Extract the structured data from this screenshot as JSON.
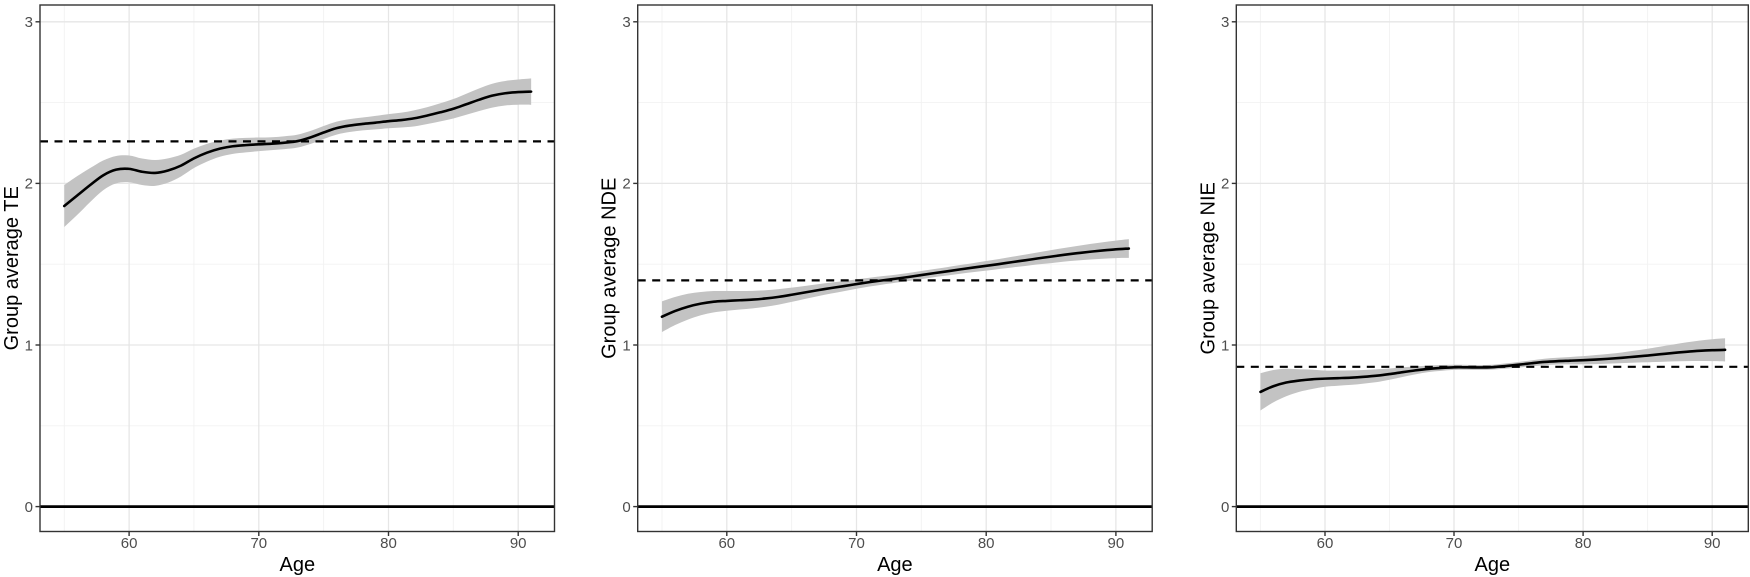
{
  "style": {
    "background": "#ffffff",
    "band_color": "#c3c3c3",
    "line_color": "#000000",
    "grid_major": "#e6e6e6",
    "grid_minor": "#f2f2f2",
    "panel_border": "#333333",
    "tick_color": "#333333",
    "tick_label_color": "#4d4d4d",
    "axis_title_color": "#000000"
  },
  "chart_data": [
    {
      "type": "line",
      "panel": "TE",
      "title": "",
      "xlabel": "Age",
      "ylabel": "Group average TE",
      "x_ticks": [
        60,
        70,
        80,
        90
      ],
      "x_minor_ticks": [
        55,
        65,
        75,
        85
      ],
      "y_ticks": [
        0,
        1,
        2,
        3
      ],
      "y_minor_ticks": [
        0.5,
        1.5,
        2.5
      ],
      "xlim": [
        53.13,
        92.8
      ],
      "ylim": [
        -0.154,
        3.104
      ],
      "grid": true,
      "legend": "none",
      "reference_lines": {
        "solid_y": 0,
        "dashed_y": 2.26
      },
      "series": {
        "name": "smoothed group average TE with 95% CI band",
        "x": [
          55,
          56,
          57,
          58,
          59,
          60,
          61,
          62,
          63,
          64,
          65,
          66,
          67,
          68,
          69,
          70,
          71,
          72,
          73,
          74,
          75,
          76,
          77,
          78,
          79,
          80,
          81,
          82,
          83,
          84,
          85,
          86,
          87,
          88,
          89,
          90,
          91
        ],
        "y": [
          1.86,
          1.925,
          1.99,
          2.05,
          2.085,
          2.09,
          2.072,
          2.065,
          2.08,
          2.11,
          2.155,
          2.19,
          2.215,
          2.23,
          2.237,
          2.242,
          2.246,
          2.252,
          2.262,
          2.285,
          2.315,
          2.342,
          2.358,
          2.368,
          2.376,
          2.385,
          2.392,
          2.403,
          2.42,
          2.44,
          2.462,
          2.49,
          2.518,
          2.543,
          2.558,
          2.565,
          2.568
        ],
        "ci_halfwidth": [
          0.13,
          0.12,
          0.105,
          0.092,
          0.085,
          0.083,
          0.082,
          0.08,
          0.075,
          0.067,
          0.06,
          0.055,
          0.05,
          0.047,
          0.045,
          0.042,
          0.04,
          0.04,
          0.04,
          0.04,
          0.04,
          0.04,
          0.04,
          0.04,
          0.042,
          0.044,
          0.046,
          0.05,
          0.052,
          0.056,
          0.06,
          0.065,
          0.07,
          0.074,
          0.076,
          0.078,
          0.082
        ]
      }
    },
    {
      "type": "line",
      "panel": "NDE",
      "title": "",
      "xlabel": "Age",
      "ylabel": "Group average NDE",
      "x_ticks": [
        60,
        70,
        80,
        90
      ],
      "x_minor_ticks": [
        55,
        65,
        75,
        85
      ],
      "y_ticks": [
        0,
        1,
        2,
        3
      ],
      "y_minor_ticks": [
        0.5,
        1.5,
        2.5
      ],
      "xlim": [
        53.13,
        92.8
      ],
      "ylim": [
        -0.154,
        3.104
      ],
      "grid": true,
      "legend": "none",
      "reference_lines": {
        "solid_y": 0,
        "dashed_y": 1.4
      },
      "series": {
        "name": "smoothed group average NDE with 95% CI band",
        "x": [
          55,
          56,
          57,
          58,
          59,
          60,
          61,
          62,
          63,
          64,
          65,
          66,
          67,
          68,
          69,
          70,
          71,
          72,
          73,
          74,
          75,
          76,
          77,
          78,
          79,
          80,
          81,
          82,
          83,
          84,
          85,
          86,
          87,
          88,
          89,
          90,
          91
        ],
        "y": [
          1.175,
          1.21,
          1.237,
          1.256,
          1.268,
          1.273,
          1.277,
          1.281,
          1.288,
          1.298,
          1.311,
          1.325,
          1.339,
          1.352,
          1.364,
          1.377,
          1.389,
          1.4,
          1.41,
          1.421,
          1.433,
          1.445,
          1.456,
          1.468,
          1.479,
          1.49,
          1.501,
          1.513,
          1.524,
          1.536,
          1.547,
          1.558,
          1.568,
          1.577,
          1.585,
          1.592,
          1.597
        ],
        "ci_halfwidth": [
          0.095,
          0.087,
          0.08,
          0.072,
          0.066,
          0.061,
          0.057,
          0.054,
          0.051,
          0.048,
          0.044,
          0.04,
          0.037,
          0.034,
          0.031,
          0.029,
          0.027,
          0.026,
          0.025,
          0.025,
          0.025,
          0.025,
          0.026,
          0.027,
          0.028,
          0.03,
          0.031,
          0.033,
          0.035,
          0.037,
          0.04,
          0.042,
          0.045,
          0.048,
          0.051,
          0.054,
          0.058
        ]
      }
    },
    {
      "type": "line",
      "panel": "NIE",
      "title": "",
      "xlabel": "Age",
      "ylabel": "Group average NIE",
      "x_ticks": [
        60,
        70,
        80,
        90
      ],
      "x_minor_ticks": [
        55,
        65,
        75,
        85
      ],
      "y_ticks": [
        0,
        1,
        2,
        3
      ],
      "y_minor_ticks": [
        0.5,
        1.5,
        2.5
      ],
      "xlim": [
        53.13,
        92.8
      ],
      "ylim": [
        -0.154,
        3.104
      ],
      "grid": true,
      "legend": "none",
      "reference_lines": {
        "solid_y": 0,
        "dashed_y": 0.865
      },
      "series": {
        "name": "smoothed group average NIE with 95% CI band",
        "x": [
          55,
          56,
          57,
          58,
          59,
          60,
          61,
          62,
          63,
          64,
          65,
          66,
          67,
          68,
          69,
          70,
          71,
          72,
          73,
          74,
          75,
          76,
          77,
          78,
          79,
          80,
          81,
          82,
          83,
          84,
          85,
          86,
          87,
          88,
          89,
          90,
          91
        ],
        "y": [
          0.71,
          0.745,
          0.768,
          0.78,
          0.788,
          0.792,
          0.795,
          0.798,
          0.803,
          0.81,
          0.82,
          0.832,
          0.843,
          0.852,
          0.858,
          0.862,
          0.862,
          0.861,
          0.863,
          0.87,
          0.878,
          0.887,
          0.895,
          0.9,
          0.903,
          0.906,
          0.91,
          0.915,
          0.921,
          0.928,
          0.935,
          0.943,
          0.951,
          0.958,
          0.964,
          0.968,
          0.97
        ],
        "ci_halfwidth": [
          0.115,
          0.1,
          0.085,
          0.07,
          0.06,
          0.05,
          0.047,
          0.045,
          0.042,
          0.04,
          0.035,
          0.03,
          0.025,
          0.02,
          0.018,
          0.016,
          0.015,
          0.015,
          0.015,
          0.016,
          0.017,
          0.018,
          0.02,
          0.021,
          0.023,
          0.025,
          0.028,
          0.03,
          0.033,
          0.037,
          0.042,
          0.047,
          0.052,
          0.058,
          0.063,
          0.068,
          0.072
        ]
      }
    }
  ]
}
